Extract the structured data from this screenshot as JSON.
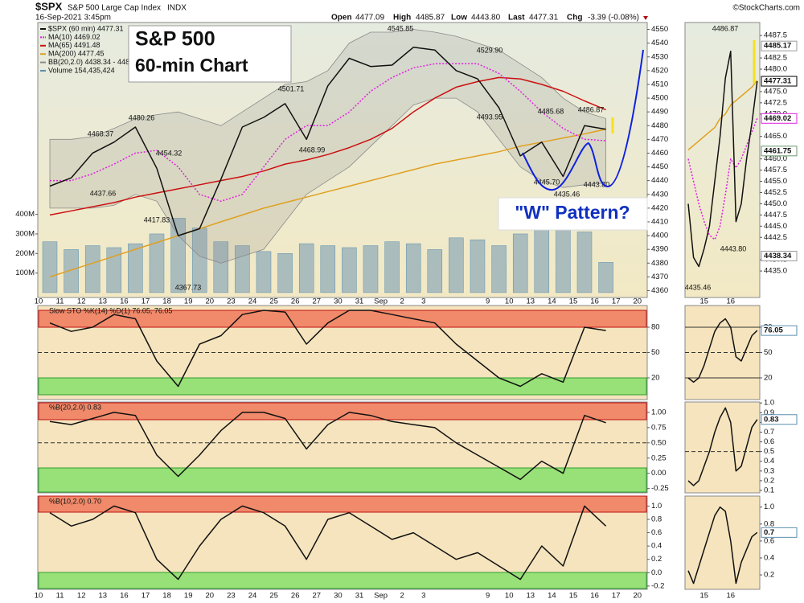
{
  "header": {
    "symbol": "$SPX",
    "name": "S&P 500 Large Cap Index",
    "exchange": "INDX",
    "source": "©StockCharts.com",
    "datetime": "16-Sep-2021 3:45pm",
    "open_label": "Open",
    "open": "4477.09",
    "high_label": "High",
    "high": "4485.87",
    "low_label": "Low",
    "low": "4443.80",
    "last_label": "Last",
    "last": "4477.31",
    "chg_label": "Chg",
    "chg": "-3.39 (-0.08%)"
  },
  "annotations": {
    "box_title": "S&P 500",
    "box_subtitle": "60-min Chart",
    "pattern": "\"W\" Pattern?",
    "price_labels": [
      "4468.37",
      "4480.26",
      "4437.66",
      "4454.32",
      "4417.83",
      "4367.73",
      "4501.71",
      "4468.99",
      "4545.85",
      "4529.90",
      "4493.95",
      "4485.68",
      "4486.87",
      "4445.70",
      "4435.46",
      "4443.80"
    ],
    "mini_price_labels": [
      "4486.87",
      "4443.80",
      "4435.46"
    ]
  },
  "chart_data": [
    {
      "type": "line",
      "categories": [
        "10",
        "11",
        "12",
        "13",
        "16",
        "17",
        "18",
        "19",
        "20",
        "23",
        "24",
        "25",
        "26",
        "27",
        "30",
        "31",
        "Sep",
        "2",
        "3",
        null,
        null,
        "9",
        "10",
        "13",
        "14",
        "15",
        "16",
        "17",
        "20"
      ],
      "series": [
        {
          "name": "Volume 154,435,424",
          "color": "#5a8fb0",
          "axis": "y2",
          "values": [
            260000000,
            220000000,
            240000000,
            230000000,
            250000000,
            300000000,
            380000000,
            330000000,
            260000000,
            240000000,
            210000000,
            200000000,
            250000000,
            240000000,
            230000000,
            240000000,
            260000000,
            250000000,
            220000000,
            280000000,
            270000000,
            240000000,
            300000000,
            330000000,
            340000000,
            310000000,
            154435424,
            null,
            null
          ]
        },
        {
          "name": "BB(20,2.0) 4438.34 - 4485.17",
          "color": "#8a8a8a",
          "upper": [
            4470,
            4470,
            4472,
            4478,
            4485,
            4488,
            4490,
            4485,
            4480,
            4490,
            4500,
            4510,
            4512,
            4520,
            4540,
            4548,
            4548,
            4550,
            4548,
            4545,
            4540,
            4535,
            4525,
            4515,
            4500,
            4490,
            4485.17,
            null,
            null
          ],
          "lower": [
            4420,
            4420,
            4420,
            4422,
            4430,
            4425,
            4400,
            4385,
            4380,
            4385,
            4390,
            4410,
            4430,
            4440,
            4450,
            4465,
            4480,
            4495,
            4500,
            4500,
            4490,
            4470,
            4450,
            4440,
            4435,
            4437,
            4438.34,
            null,
            null
          ]
        },
        {
          "name": "MA(200) 4477.45",
          "color": "#e0a020",
          "values": [
            4370,
            4375,
            4380,
            4385,
            4390,
            4395,
            4400,
            4405,
            4410,
            4415,
            4420,
            4424,
            4428,
            4432,
            4436,
            4440,
            4444,
            4448,
            4452,
            4455,
            4458,
            4461,
            4465,
            4468,
            4471,
            4474,
            4477.45,
            null,
            null
          ]
        },
        {
          "name": "MA(65) 4491.48",
          "color": "#cc1010",
          "values": [
            4415,
            4418,
            4421,
            4424,
            4428,
            4431,
            4434,
            4437,
            4440,
            4443,
            4447,
            4452,
            4455,
            4459,
            4464,
            4470,
            4478,
            4490,
            4500,
            4508,
            4512,
            4515,
            4514,
            4510,
            4505,
            4498,
            4491.48,
            null,
            null
          ]
        },
        {
          "name": "MA(10) 4469.02",
          "color": "#e020e0",
          "style": "dotted",
          "values": [
            4440,
            4440,
            4445,
            4452,
            4460,
            4462,
            4450,
            4430,
            4425,
            4430,
            4450,
            4470,
            4480,
            4480,
            4490,
            4505,
            4515,
            4522,
            4525,
            4525,
            4525,
            4518,
            4505,
            4490,
            4478,
            4470,
            4469.02,
            null,
            null
          ]
        },
        {
          "name": "$SPX (60 min) 4477.31",
          "color": "#111111",
          "values": [
            4436,
            4442,
            4460,
            4468,
            4479,
            4449,
            4400,
            4405,
            4441,
            4479,
            4486,
            4496,
            4470,
            4509,
            4529,
            4523,
            4524,
            4537,
            4535,
            4520,
            4514,
            4493,
            4458,
            4468,
            4443,
            4480,
            4477.31,
            null,
            null
          ]
        }
      ],
      "ylim": [
        4355,
        4555
      ],
      "yticks": [
        4360,
        4370,
        4380,
        4390,
        4400,
        4410,
        4420,
        4430,
        4440,
        4450,
        4460,
        4470,
        4480,
        4490,
        4500,
        4510,
        4520,
        4530,
        4540,
        4550
      ],
      "y2lim": [
        -25000000,
        1381000000
      ],
      "y2ticks": [
        {
          "value": 100000000,
          "label": "100M"
        },
        {
          "value": 200000000,
          "label": "200M"
        },
        {
          "value": 300000000,
          "label": "300M"
        },
        {
          "value": 400000000,
          "label": "400M"
        }
      ]
    },
    {
      "type": "line",
      "title": "Slow STO %K(14) %D(1) 76.05, 76.05",
      "color": "#111111",
      "values": [
        85,
        75,
        80,
        95,
        90,
        40,
        10,
        60,
        70,
        95,
        100,
        98,
        60,
        85,
        100,
        100,
        95,
        90,
        85,
        60,
        40,
        20,
        10,
        25,
        15,
        80,
        76.05,
        null,
        null
      ],
      "ylim": [
        -5.7,
        105.7
      ],
      "yticks": [
        20,
        50,
        80
      ]
    },
    {
      "type": "line",
      "title": "%B(20,2.0) 0.83",
      "color": "#111111",
      "values": [
        0.85,
        0.8,
        0.9,
        1.0,
        0.95,
        0.3,
        -0.05,
        0.3,
        0.7,
        1.0,
        1.0,
        0.9,
        0.4,
        0.8,
        1.0,
        0.95,
        0.85,
        0.8,
        0.75,
        0.5,
        0.3,
        0.1,
        -0.1,
        0.2,
        0.0,
        0.95,
        0.83,
        null,
        null
      ],
      "ylim": [
        -0.32,
        1.17
      ],
      "yticks": [
        {
          "value": 1,
          "label": "1.00"
        },
        0.75,
        {
          "value": 0.5,
          "label": "0.50"
        },
        0.25,
        {
          "value": 0,
          "label": "0.00"
        },
        -0.25
      ]
    },
    {
      "type": "line",
      "title": "%B(10,2.0) 0.70",
      "color": "#111111",
      "values": [
        0.9,
        0.7,
        0.8,
        1.0,
        0.9,
        0.2,
        -0.1,
        0.4,
        0.8,
        1.0,
        0.9,
        0.7,
        0.2,
        0.8,
        0.9,
        0.7,
        0.5,
        0.6,
        0.4,
        0.2,
        0.3,
        0.1,
        -0.1,
        0.4,
        0.1,
        1.0,
        0.7,
        null,
        null
      ],
      "ylim": [
        -0.25,
        1.15
      ],
      "yticks": [
        {
          "value": 1,
          "label": "1.0"
        },
        0.8,
        0.6,
        0.4,
        0.2,
        {
          "value": 0,
          "label": "0.0"
        },
        -0.2
      ]
    },
    {
      "type": "line",
      "categories": [
        null,
        null,
        null,
        "15",
        null,
        null,
        null,
        null,
        "16",
        null,
        null,
        null,
        null,
        null
      ],
      "series": [
        {
          "color": "#e0a020",
          "values": [
            4462,
            4463,
            4464,
            4465,
            4466,
            4467,
            4469,
            4470,
            4472,
            4473,
            4474,
            4475,
            4476,
            4477.45
          ]
        },
        {
          "color": "#e020e0",
          "style": "dotted",
          "values": [
            4460,
            4455,
            4450,
            4446,
            4443,
            4442,
            4445,
            4452,
            4460,
            4458,
            4460,
            4463,
            4466,
            4469.02
          ]
        },
        {
          "color": "#111111",
          "values": [
            4450,
            4438,
            4436,
            4440,
            4445,
            4455,
            4465,
            4478,
            4484,
            4446,
            4450,
            4460,
            4468,
            4477.31
          ]
        }
      ],
      "ylim": [
        4429.1,
        4490.4
      ],
      "yticks": [
        4487.5,
        4482.5,
        {
          "value": 4480,
          "label": "4480.0"
        },
        {
          "value": 4475,
          "label": "4475.0"
        },
        4472.5,
        {
          "value": 4470,
          "label": "4470.0"
        },
        {
          "value": 4465,
          "label": "4465.0"
        },
        {
          "value": 4460,
          "label": "4460.0"
        },
        4457.5,
        {
          "value": 4455,
          "label": "4455.0"
        },
        4452.5,
        {
          "value": 4450,
          "label": "4450.0"
        },
        4447.5,
        {
          "value": 4445,
          "label": "4445.0"
        },
        4442.5,
        4437.5,
        {
          "value": 4435,
          "label": "4435.0"
        }
      ],
      "tags": [
        {
          "value": 4485.17,
          "color": "#999999"
        },
        {
          "value": 4477.31,
          "color": "#000000"
        },
        {
          "value": 4469.02,
          "color": "#e020e0"
        },
        {
          "value": 4461.75,
          "color": "#6a9a6a"
        },
        {
          "value": 4438.34,
          "color": "#999999"
        }
      ]
    },
    {
      "type": "line",
      "color": "#111111",
      "values": [
        20,
        15,
        20,
        35,
        55,
        75,
        85,
        90,
        80,
        45,
        40,
        55,
        70,
        76.05
      ],
      "ylim": [
        -5.7,
        105.7
      ],
      "yticks": [
        20,
        50,
        80
      ],
      "tags": [
        {
          "value": 76.05,
          "color": "#5a8fb0"
        }
      ]
    },
    {
      "type": "line",
      "color": "#111111",
      "values": [
        0.2,
        0.15,
        0.2,
        0.35,
        0.5,
        0.7,
        0.85,
        0.95,
        0.8,
        0.3,
        0.35,
        0.55,
        0.75,
        0.83
      ],
      "ylim": [
        0.075,
        1.01
      ],
      "yticks": [
        {
          "value": 1,
          "label": "1.0"
        },
        0.9,
        0.8,
        0.7,
        0.6,
        0.5,
        0.4,
        0.3,
        0.2,
        0.1
      ],
      "tags": [
        {
          "value": 0.83,
          "color": "#5a8fb0"
        }
      ]
    },
    {
      "type": "line",
      "color": "#111111",
      "values": [
        0.25,
        0.1,
        0.3,
        0.5,
        0.7,
        0.9,
        1.0,
        0.95,
        0.6,
        0.1,
        0.35,
        0.5,
        0.65,
        0.7
      ],
      "categories": [
        null,
        null,
        null,
        "15",
        null,
        null,
        null,
        null,
        "16",
        null,
        null,
        null,
        null,
        null
      ],
      "ylim": [
        0.03,
        1.13
      ],
      "yticks": [
        {
          "value": 1,
          "label": "1.0"
        },
        0.8,
        0.6,
        0.4,
        0.2
      ],
      "tags": [
        {
          "value": 0.7,
          "color": "#5a8fb0"
        }
      ]
    }
  ]
}
